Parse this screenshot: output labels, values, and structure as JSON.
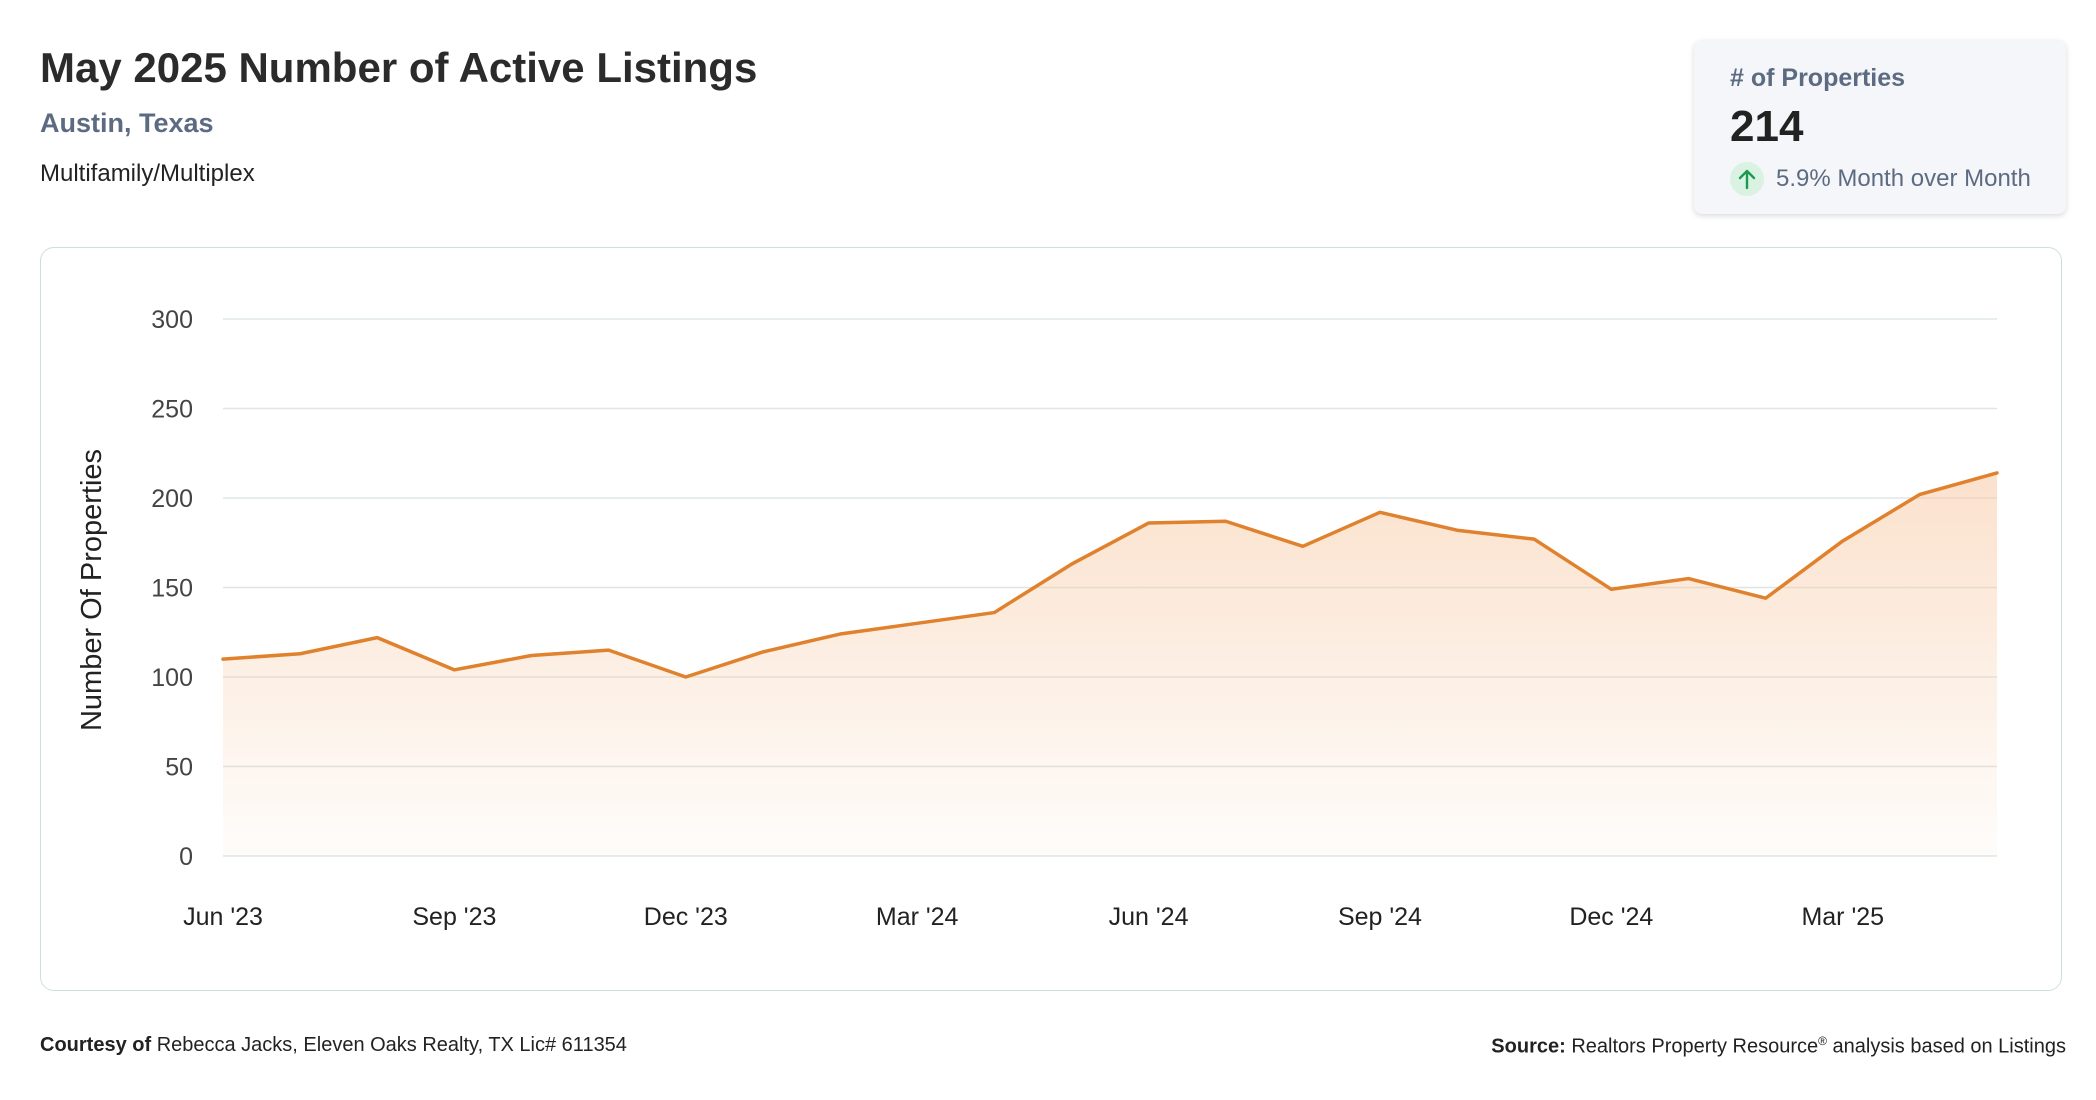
{
  "header": {
    "title": "May 2025 Number of Active Listings",
    "location": "Austin, Texas",
    "category": "Multifamily/Multiplex"
  },
  "kpi": {
    "label": "# of Properties",
    "value": "214",
    "change": "5.9% Month over Month",
    "direction_icon": "arrow-up-icon",
    "change_color": "#1e9a4e"
  },
  "colors": {
    "line": "#e0812e",
    "fill": "#f7c9a3"
  },
  "chart_data": {
    "type": "area",
    "title": "",
    "xlabel": "",
    "ylabel": "Number Of Properties",
    "ylim": [
      0,
      300
    ],
    "yticks": [
      0,
      50,
      100,
      150,
      200,
      250,
      300
    ],
    "grid": true,
    "x": [
      "Jun '23",
      "Jul '23",
      "Aug '23",
      "Sep '23",
      "Oct '23",
      "Nov '23",
      "Dec '23",
      "Jan '24",
      "Feb '24",
      "Mar '24",
      "Apr '24",
      "May '24",
      "Jun '24",
      "Jul '24",
      "Aug '24",
      "Sep '24",
      "Oct '24",
      "Nov '24",
      "Dec '24",
      "Jan '25",
      "Feb '25",
      "Mar '25",
      "Apr '25",
      "May '25"
    ],
    "xtick_labels": [
      "Jun '23",
      "Sep '23",
      "Dec '23",
      "Mar '24",
      "Jun '24",
      "Sep '24",
      "Dec '24",
      "Mar '25"
    ],
    "series": [
      {
        "values": [
          110,
          113,
          122,
          104,
          112,
          115,
          100,
          114,
          124,
          130,
          136,
          163,
          186,
          187,
          173,
          192,
          182,
          177,
          149,
          155,
          144,
          176,
          202,
          214
        ]
      }
    ]
  },
  "footer": {
    "courtesy_label": "Courtesy of",
    "courtesy_text": "Rebecca Jacks, Eleven Oaks Realty, TX Lic# 611354",
    "source_label": "Source:",
    "source_name": "Realtors Property Resource",
    "source_mark": "®",
    "source_rest": "analysis based on Listings"
  }
}
